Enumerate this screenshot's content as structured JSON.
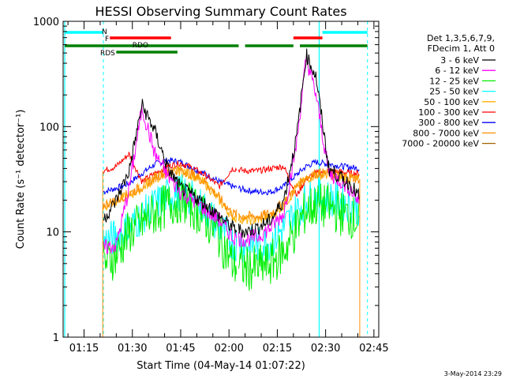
{
  "chart_data": {
    "type": "line",
    "title": "HESSI Observing Summary Count Rates",
    "xlabel": "Start Time (04-May-14 01:07:22)",
    "ylabel": "Count Rate (s⁻¹ detector⁻¹)",
    "y_scale": "log",
    "ylim": [
      1,
      1000
    ],
    "xlim_minutes": [
      68.5,
      166.5
    ],
    "x_tick_labels": [
      "01:15",
      "01:30",
      "01:45",
      "02:00",
      "02:15",
      "02:30",
      "02:45"
    ],
    "x_tick_minutes": [
      75,
      90,
      105,
      120,
      135,
      150,
      165
    ],
    "y_tick_labels": [
      "1",
      "10",
      "100",
      "1000"
    ],
    "y_tick_values": [
      1,
      10,
      100,
      1000
    ],
    "date_stamp": "3-May-2014 23:29",
    "legend": {
      "placement": "right-outside",
      "header": [
        "Det 1,3,5,6,7,9,",
        "FDecim 1, Att 0"
      ]
    },
    "segments": [
      72,
      89,
      123,
      143,
      160
    ],
    "series": [
      {
        "name": "3 - 6 keV",
        "color": "#000000",
        "points": [
          [
            81,
            13
          ],
          [
            85,
            20
          ],
          [
            89,
            38
          ],
          [
            93,
            160
          ],
          [
            97,
            90
          ],
          [
            101,
            40
          ],
          [
            105,
            26
          ],
          [
            109,
            22
          ],
          [
            113,
            18
          ],
          [
            117,
            14
          ],
          [
            121,
            11
          ],
          [
            125,
            10
          ],
          [
            129,
            11
          ],
          [
            133,
            13
          ],
          [
            137,
            20
          ],
          [
            141,
            80
          ],
          [
            144,
            480
          ],
          [
            147,
            300
          ],
          [
            151,
            40
          ],
          [
            155,
            32
          ],
          [
            158,
            28
          ],
          [
            160,
            22
          ]
        ]
      },
      {
        "name": "6 - 12 keV",
        "color": "#ff00ff",
        "points": [
          [
            81,
            7
          ],
          [
            85,
            7.5
          ],
          [
            89,
            26
          ],
          [
            93,
            150
          ],
          [
            97,
            55
          ],
          [
            101,
            34
          ],
          [
            105,
            24
          ],
          [
            109,
            20
          ],
          [
            113,
            16
          ],
          [
            117,
            13
          ],
          [
            121,
            9
          ],
          [
            125,
            8.5
          ],
          [
            129,
            9
          ],
          [
            133,
            11
          ],
          [
            137,
            15
          ],
          [
            141,
            70
          ],
          [
            144,
            450
          ],
          [
            147,
            200
          ],
          [
            151,
            36
          ],
          [
            155,
            30
          ],
          [
            158,
            25
          ],
          [
            160,
            20
          ]
        ]
      },
      {
        "name": "12 - 25 keV",
        "color": "#00ee00",
        "points": [
          [
            81,
            5
          ],
          [
            85,
            6
          ],
          [
            89,
            10
          ],
          [
            93,
            12
          ],
          [
            97,
            15
          ],
          [
            101,
            18
          ],
          [
            105,
            20
          ],
          [
            109,
            17
          ],
          [
            113,
            13
          ],
          [
            117,
            9
          ],
          [
            121,
            5
          ],
          [
            125,
            4.5
          ],
          [
            129,
            4.5
          ],
          [
            133,
            5
          ],
          [
            137,
            6.5
          ],
          [
            141,
            11
          ],
          [
            144,
            16
          ],
          [
            147,
            18
          ],
          [
            151,
            17
          ],
          [
            155,
            15
          ],
          [
            158,
            14
          ],
          [
            160,
            13
          ]
        ]
      },
      {
        "name": "25 - 50 keV",
        "color": "#00ffff",
        "points": [
          [
            81,
            8
          ],
          [
            85,
            9
          ],
          [
            89,
            11
          ],
          [
            93,
            14
          ],
          [
            97,
            18
          ],
          [
            101,
            22
          ],
          [
            105,
            24
          ],
          [
            109,
            20
          ],
          [
            113,
            16
          ],
          [
            117,
            11
          ],
          [
            121,
            8
          ],
          [
            125,
            7.5
          ],
          [
            129,
            7.5
          ],
          [
            133,
            8
          ],
          [
            137,
            11
          ],
          [
            141,
            16
          ],
          [
            144,
            20
          ],
          [
            147,
            22
          ],
          [
            151,
            21
          ],
          [
            155,
            19
          ],
          [
            158,
            18
          ],
          [
            160,
            17
          ]
        ]
      },
      {
        "name": "50 - 100 keV",
        "color": "#ffb000",
        "points": [
          [
            81,
            17
          ],
          [
            85,
            20
          ],
          [
            89,
            22
          ],
          [
            93,
            26
          ],
          [
            97,
            32
          ],
          [
            101,
            36
          ],
          [
            105,
            38
          ],
          [
            109,
            34
          ],
          [
            113,
            28
          ],
          [
            117,
            20
          ],
          [
            121,
            14
          ],
          [
            125,
            13
          ],
          [
            129,
            13
          ],
          [
            133,
            14
          ],
          [
            137,
            18
          ],
          [
            141,
            26
          ],
          [
            144,
            32
          ],
          [
            147,
            35
          ],
          [
            151,
            35
          ],
          [
            155,
            33
          ],
          [
            158,
            32
          ],
          [
            160,
            31
          ]
        ]
      },
      {
        "name": "100 - 300 keV",
        "color": "#ff0000",
        "points": [
          [
            81,
            38
          ],
          [
            85,
            42
          ],
          [
            89,
            55
          ],
          [
            93,
            30
          ],
          [
            97,
            36
          ],
          [
            101,
            42
          ],
          [
            105,
            45
          ],
          [
            109,
            40
          ],
          [
            113,
            34
          ],
          [
            117,
            27
          ],
          [
            121,
            40
          ],
          [
            125,
            38
          ],
          [
            129,
            38
          ],
          [
            133,
            40
          ],
          [
            137,
            42
          ],
          [
            141,
            22
          ],
          [
            144,
            32
          ],
          [
            147,
            36
          ],
          [
            151,
            38
          ],
          [
            155,
            37
          ],
          [
            158,
            36
          ],
          [
            160,
            36
          ]
        ]
      },
      {
        "name": "300 - 800 keV",
        "color": "#0000ff",
        "points": [
          [
            81,
            24
          ],
          [
            85,
            26
          ],
          [
            89,
            29
          ],
          [
            93,
            36
          ],
          [
            97,
            44
          ],
          [
            101,
            48
          ],
          [
            105,
            46
          ],
          [
            109,
            40
          ],
          [
            113,
            35
          ],
          [
            117,
            30
          ],
          [
            121,
            27
          ],
          [
            125,
            25
          ],
          [
            129,
            24
          ],
          [
            133,
            24
          ],
          [
            137,
            27
          ],
          [
            141,
            35
          ],
          [
            144,
            42
          ],
          [
            147,
            46
          ],
          [
            151,
            44
          ],
          [
            155,
            42
          ],
          [
            158,
            41
          ],
          [
            160,
            40
          ]
        ]
      },
      {
        "name": "800 - 7000 keV",
        "color": "#ff8c00",
        "points": [
          [
            81,
            18
          ],
          [
            85,
            20
          ],
          [
            89,
            23
          ],
          [
            93,
            27
          ],
          [
            97,
            33
          ],
          [
            101,
            38
          ],
          [
            105,
            39
          ],
          [
            109,
            35
          ],
          [
            113,
            29
          ],
          [
            117,
            21
          ],
          [
            121,
            15
          ],
          [
            125,
            14
          ],
          [
            129,
            14
          ],
          [
            133,
            15
          ],
          [
            137,
            19
          ],
          [
            141,
            27
          ],
          [
            144,
            33
          ],
          [
            147,
            36
          ],
          [
            151,
            36
          ],
          [
            155,
            34
          ],
          [
            158,
            33
          ],
          [
            160,
            32
          ]
        ]
      },
      {
        "name": "7000 - 20000 keV",
        "color": "#a06400",
        "points": []
      }
    ],
    "flag_bars": [
      {
        "label": "N",
        "color": "#00ffff",
        "segments": [
          [
            69,
            81
          ],
          [
            149,
            163
          ]
        ]
      },
      {
        "label": "F",
        "color": "#ff0000",
        "segments": [
          [
            83,
            102
          ],
          [
            140,
            149
          ]
        ]
      },
      {
        "label": "RDO",
        "color": "#008000",
        "segments": [
          [
            69,
            123
          ],
          [
            125,
            140
          ],
          [
            142,
            163
          ]
        ]
      },
      {
        "label": "RDS",
        "color": "#008000",
        "segments": [
          [
            85,
            104
          ]
        ]
      }
    ],
    "vlines_solid": [
      69,
      148
    ],
    "vlines_dashed": [
      81,
      163
    ]
  }
}
